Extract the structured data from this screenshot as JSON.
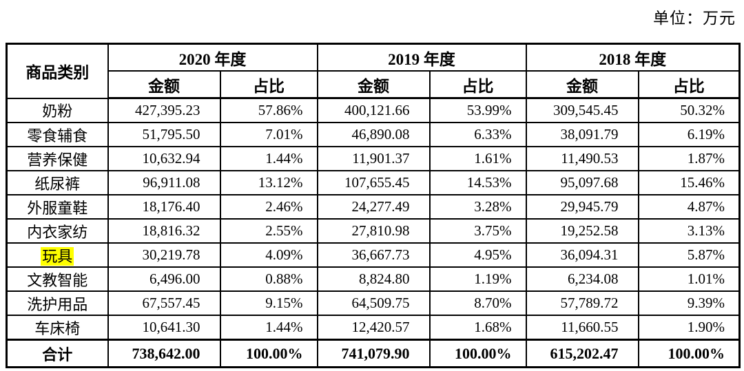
{
  "unit_label": "单位：万元",
  "colors": {
    "highlight": "#ffff00",
    "border": "#000000",
    "background": "#ffffff",
    "text": "#000000"
  },
  "table": {
    "category_header": "商品类别",
    "year_groups": [
      {
        "year": "2020 年度",
        "amount_label": "金额",
        "ratio_label": "占比"
      },
      {
        "year": "2019 年度",
        "amount_label": "金额",
        "ratio_label": "占比"
      },
      {
        "year": "2018 年度",
        "amount_label": "金额",
        "ratio_label": "占比"
      }
    ],
    "rows": [
      {
        "category": "奶粉",
        "highlight": false,
        "values": [
          "427,395.23",
          "57.86%",
          "400,121.66",
          "53.99%",
          "309,545.45",
          "50.32%"
        ]
      },
      {
        "category": "零食辅食",
        "highlight": false,
        "values": [
          "51,795.50",
          "7.01%",
          "46,890.08",
          "6.33%",
          "38,091.79",
          "6.19%"
        ]
      },
      {
        "category": "营养保健",
        "highlight": false,
        "values": [
          "10,632.94",
          "1.44%",
          "11,901.37",
          "1.61%",
          "11,490.53",
          "1.87%"
        ]
      },
      {
        "category": "纸尿裤",
        "highlight": false,
        "values": [
          "96,911.08",
          "13.12%",
          "107,655.45",
          "14.53%",
          "95,097.68",
          "15.46%"
        ]
      },
      {
        "category": "外服童鞋",
        "highlight": false,
        "values": [
          "18,176.40",
          "2.46%",
          "24,277.49",
          "3.28%",
          "29,945.79",
          "4.87%"
        ]
      },
      {
        "category": "内衣家纺",
        "highlight": false,
        "values": [
          "18,816.32",
          "2.55%",
          "27,810.98",
          "3.75%",
          "19,252.58",
          "3.13%"
        ]
      },
      {
        "category": "玩具",
        "highlight": true,
        "values": [
          "30,219.78",
          "4.09%",
          "36,667.73",
          "4.95%",
          "36,094.31",
          "5.87%"
        ]
      },
      {
        "category": "文教智能",
        "highlight": false,
        "values": [
          "6,496.00",
          "0.88%",
          "8,824.80",
          "1.19%",
          "6,234.08",
          "1.01%"
        ]
      },
      {
        "category": "洗护用品",
        "highlight": false,
        "values": [
          "67,557.45",
          "9.15%",
          "64,509.75",
          "8.70%",
          "57,789.72",
          "9.39%"
        ]
      },
      {
        "category": "车床椅",
        "highlight": false,
        "values": [
          "10,641.30",
          "1.44%",
          "12,420.57",
          "1.68%",
          "11,660.55",
          "1.90%"
        ]
      }
    ],
    "total_row": {
      "category": "合计",
      "values": [
        "738,642.00",
        "100.00%",
        "741,079.90",
        "100.00%",
        "615,202.47",
        "100.00%"
      ]
    }
  }
}
